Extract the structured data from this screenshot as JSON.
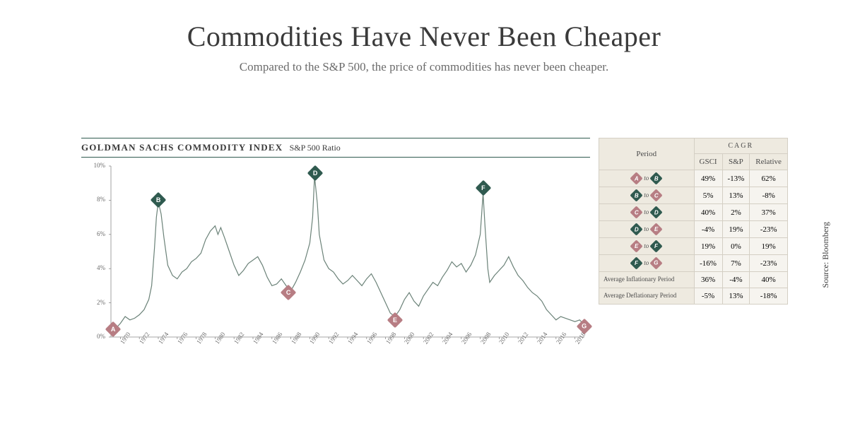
{
  "header": {
    "title": "Commodities Have Never Been Cheaper",
    "subtitle": "Compared to the S&P 500, the price of commodities has never been cheaper."
  },
  "chart": {
    "type": "line",
    "title_main": "GOLDMAN SACHS COMMODITY INDEX",
    "title_sub": "S&P 500 Ratio",
    "line_color": "#6b8278",
    "line_width": 1.2,
    "background_color": "#ffffff",
    "axis_color": "#8a8a8a",
    "label_color": "#6b6b6b",
    "label_fontsize": 9,
    "xlim": [
      1969,
      2019
    ],
    "ylim": [
      0,
      10
    ],
    "ytick_step": 2,
    "ytick_suffix": "%",
    "xticks": [
      1970,
      1972,
      1974,
      1976,
      1978,
      1980,
      1982,
      1984,
      1986,
      1988,
      1990,
      1992,
      1994,
      1996,
      1998,
      2000,
      2002,
      2004,
      2006,
      2008,
      2010,
      2012,
      2014,
      2016,
      2018
    ],
    "series": [
      [
        1969.0,
        0.4
      ],
      [
        1969.5,
        0.5
      ],
      [
        1970.0,
        0.8
      ],
      [
        1970.5,
        1.2
      ],
      [
        1971.0,
        1.0
      ],
      [
        1971.5,
        1.1
      ],
      [
        1972.0,
        1.3
      ],
      [
        1972.5,
        1.6
      ],
      [
        1973.0,
        2.2
      ],
      [
        1973.3,
        3.0
      ],
      [
        1973.6,
        5.2
      ],
      [
        1973.8,
        7.0
      ],
      [
        1974.0,
        7.9
      ],
      [
        1974.3,
        7.2
      ],
      [
        1974.6,
        5.8
      ],
      [
        1975.0,
        4.2
      ],
      [
        1975.5,
        3.6
      ],
      [
        1976.0,
        3.4
      ],
      [
        1976.5,
        3.8
      ],
      [
        1977.0,
        4.0
      ],
      [
        1977.5,
        4.4
      ],
      [
        1978.0,
        4.6
      ],
      [
        1978.5,
        4.9
      ],
      [
        1979.0,
        5.7
      ],
      [
        1979.5,
        6.2
      ],
      [
        1980.0,
        6.5
      ],
      [
        1980.3,
        6.0
      ],
      [
        1980.6,
        6.4
      ],
      [
        1981.0,
        5.8
      ],
      [
        1981.5,
        5.0
      ],
      [
        1982.0,
        4.2
      ],
      [
        1982.5,
        3.6
      ],
      [
        1983.0,
        3.9
      ],
      [
        1983.5,
        4.3
      ],
      [
        1984.0,
        4.5
      ],
      [
        1984.5,
        4.7
      ],
      [
        1985.0,
        4.2
      ],
      [
        1985.5,
        3.5
      ],
      [
        1986.0,
        3.0
      ],
      [
        1986.5,
        3.1
      ],
      [
        1987.0,
        3.4
      ],
      [
        1987.5,
        3.0
      ],
      [
        1988.0,
        2.7
      ],
      [
        1988.5,
        3.2
      ],
      [
        1989.0,
        3.8
      ],
      [
        1989.5,
        4.5
      ],
      [
        1990.0,
        5.5
      ],
      [
        1990.3,
        7.0
      ],
      [
        1990.5,
        9.4
      ],
      [
        1990.8,
        7.8
      ],
      [
        1991.0,
        6.0
      ],
      [
        1991.5,
        4.5
      ],
      [
        1992.0,
        4.0
      ],
      [
        1992.5,
        3.8
      ],
      [
        1993.0,
        3.4
      ],
      [
        1993.5,
        3.1
      ],
      [
        1994.0,
        3.3
      ],
      [
        1994.5,
        3.6
      ],
      [
        1995.0,
        3.3
      ],
      [
        1995.5,
        3.0
      ],
      [
        1996.0,
        3.4
      ],
      [
        1996.5,
        3.7
      ],
      [
        1997.0,
        3.2
      ],
      [
        1997.5,
        2.6
      ],
      [
        1998.0,
        2.0
      ],
      [
        1998.5,
        1.4
      ],
      [
        1999.0,
        1.2
      ],
      [
        1999.5,
        1.6
      ],
      [
        2000.0,
        2.2
      ],
      [
        2000.5,
        2.6
      ],
      [
        2001.0,
        2.1
      ],
      [
        2001.5,
        1.8
      ],
      [
        2002.0,
        2.4
      ],
      [
        2002.5,
        2.8
      ],
      [
        2003.0,
        3.2
      ],
      [
        2003.5,
        3.0
      ],
      [
        2004.0,
        3.5
      ],
      [
        2004.5,
        3.9
      ],
      [
        2005.0,
        4.4
      ],
      [
        2005.5,
        4.1
      ],
      [
        2006.0,
        4.3
      ],
      [
        2006.5,
        3.8
      ],
      [
        2007.0,
        4.2
      ],
      [
        2007.5,
        4.8
      ],
      [
        2008.0,
        6.0
      ],
      [
        2008.3,
        8.4
      ],
      [
        2008.5,
        6.5
      ],
      [
        2008.8,
        4.0
      ],
      [
        2009.0,
        3.2
      ],
      [
        2009.5,
        3.6
      ],
      [
        2010.0,
        3.9
      ],
      [
        2010.5,
        4.2
      ],
      [
        2011.0,
        4.7
      ],
      [
        2011.5,
        4.1
      ],
      [
        2012.0,
        3.6
      ],
      [
        2012.5,
        3.3
      ],
      [
        2013.0,
        2.9
      ],
      [
        2013.5,
        2.6
      ],
      [
        2014.0,
        2.4
      ],
      [
        2014.5,
        2.1
      ],
      [
        2015.0,
        1.6
      ],
      [
        2015.5,
        1.3
      ],
      [
        2016.0,
        1.0
      ],
      [
        2016.5,
        1.2
      ],
      [
        2017.0,
        1.1
      ],
      [
        2017.5,
        1.0
      ],
      [
        2018.0,
        0.9
      ],
      [
        2018.5,
        1.0
      ],
      [
        2019.0,
        0.7
      ]
    ],
    "markers": [
      {
        "id": "A",
        "x": 1969.2,
        "y": 0.45,
        "color": "#b77d83"
      },
      {
        "id": "B",
        "x": 1974.0,
        "y": 8.0,
        "color": "#2f5a4f"
      },
      {
        "id": "C",
        "x": 1987.7,
        "y": 2.6,
        "color": "#b77d83"
      },
      {
        "id": "D",
        "x": 1990.6,
        "y": 9.6,
        "color": "#2f5a4f"
      },
      {
        "id": "E",
        "x": 1999.0,
        "y": 1.0,
        "color": "#b77d83"
      },
      {
        "id": "F",
        "x": 2008.3,
        "y": 8.7,
        "color": "#2f5a4f"
      },
      {
        "id": "G",
        "x": 2019.0,
        "y": 0.6,
        "color": "#b77d83"
      }
    ],
    "marker_light_color": "#b77d83",
    "marker_dark_color": "#2f5a4f"
  },
  "table": {
    "cagr_label": "CAGR",
    "columns": [
      "Period",
      "GSCI",
      "S&P",
      "Relative"
    ],
    "to_text": "to",
    "rows": [
      {
        "from": "A",
        "from_color": "#b77d83",
        "to": "B",
        "to_color": "#2f5a4f",
        "gsci": "49%",
        "sp": "-13%",
        "rel": "62%"
      },
      {
        "from": "B",
        "from_color": "#2f5a4f",
        "to": "C",
        "to_color": "#b77d83",
        "gsci": "5%",
        "sp": "13%",
        "rel": "-8%"
      },
      {
        "from": "C",
        "from_color": "#b77d83",
        "to": "D",
        "to_color": "#2f5a4f",
        "gsci": "40%",
        "sp": "2%",
        "rel": "37%"
      },
      {
        "from": "D",
        "from_color": "#2f5a4f",
        "to": "E",
        "to_color": "#b77d83",
        "gsci": "-4%",
        "sp": "19%",
        "rel": "-23%"
      },
      {
        "from": "E",
        "from_color": "#b77d83",
        "to": "F",
        "to_color": "#2f5a4f",
        "gsci": "19%",
        "sp": "0%",
        "rel": "19%"
      },
      {
        "from": "F",
        "from_color": "#2f5a4f",
        "to": "G",
        "to_color": "#b77d83",
        "gsci": "-16%",
        "sp": "7%",
        "rel": "-23%"
      }
    ],
    "summary": [
      {
        "label": "Average Inflationary Period",
        "gsci": "36%",
        "sp": "-4%",
        "rel": "40%"
      },
      {
        "label": "Average Deflationary Period",
        "gsci": "-5%",
        "sp": "13%",
        "rel": "-18%"
      }
    ],
    "header_bg": "#eeeae0",
    "cell_bg": "#f6f4ef",
    "border_color": "#d4cfc4"
  },
  "source": "Source: Bloomberg"
}
